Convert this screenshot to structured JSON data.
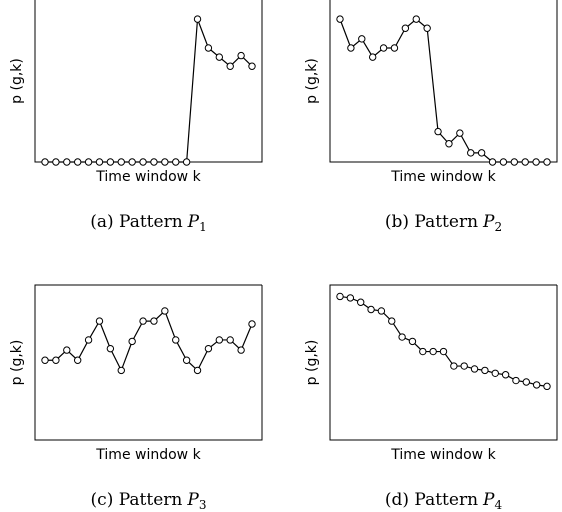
{
  "chart_data": [
    {
      "type": "line",
      "xlabel": "Time window k",
      "ylabel": "p (g,k)",
      "caption": {
        "text": "(a) Pattern",
        "symbol": "P",
        "subscript": "1"
      },
      "ylim": [
        0,
        10
      ],
      "color": "#000000",
      "values": [
        0,
        0,
        0,
        0,
        0,
        0,
        0,
        0,
        0,
        0,
        0,
        0,
        0,
        0,
        9.4,
        7.5,
        6.9,
        6.3,
        7.0,
        6.3
      ]
    },
    {
      "type": "line",
      "xlabel": "Time window k",
      "ylabel": "p (g,k)",
      "caption": {
        "text": "(b) Pattern",
        "symbol": "P",
        "subscript": "2"
      },
      "ylim": [
        0,
        10
      ],
      "color": "#000000",
      "values": [
        9.4,
        7.5,
        8.1,
        6.9,
        7.5,
        7.5,
        8.8,
        9.4,
        8.8,
        2.0,
        1.2,
        1.9,
        0.6,
        0.6,
        0,
        0,
        0,
        0,
        0,
        0
      ]
    },
    {
      "type": "line",
      "xlabel": "Time window k",
      "ylabel": "p (g,k)",
      "caption": {
        "text": "(c) Pattern",
        "symbol": "P",
        "subscript": "3"
      },
      "ylim": [
        0,
        10
      ],
      "color": "#000000",
      "values": [
        5.5,
        5.5,
        6.2,
        5.5,
        6.9,
        8.2,
        6.3,
        4.8,
        6.8,
        8.2,
        8.2,
        8.9,
        6.9,
        5.5,
        4.8,
        6.3,
        6.9,
        6.9,
        6.2,
        8.0
      ]
    },
    {
      "type": "line",
      "xlabel": "Time window k",
      "ylabel": "p (g,k)",
      "caption": {
        "text": "(d) Pattern",
        "symbol": "P",
        "subscript": "4"
      },
      "ylim": [
        0,
        10
      ],
      "color": "#000000",
      "values": [
        9.9,
        9.8,
        9.5,
        9.0,
        8.9,
        8.2,
        7.1,
        6.8,
        6.1,
        6.1,
        6.1,
        5.1,
        5.1,
        4.9,
        4.8,
        4.6,
        4.5,
        4.1,
        4.0,
        3.8,
        3.7
      ]
    }
  ]
}
